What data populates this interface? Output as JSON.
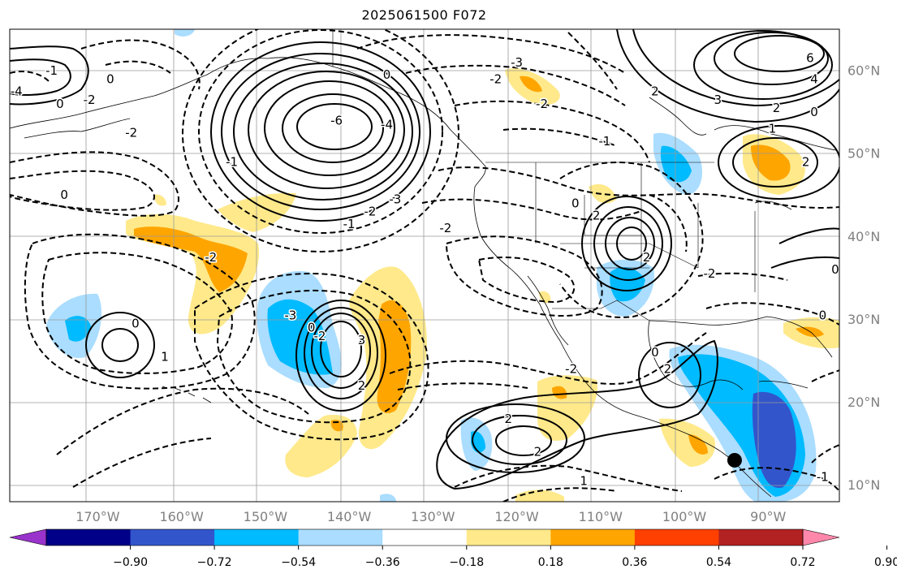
{
  "title": "2025061500 F072",
  "map": {
    "longitude_labels": [
      "170°W",
      "160°W",
      "150°W",
      "140°W",
      "130°W",
      "120°W",
      "110°W",
      "100°W",
      "90°W"
    ],
    "latitude_labels": [
      "60°N",
      "50°N",
      "40°N",
      "30°N",
      "20°N",
      "10°N"
    ],
    "contour_labels": [
      {
        "text": "-1",
        "lon": 175.5,
        "lat": 60.0
      },
      {
        "text": "0",
        "lon": 174.5,
        "lat": 56.0
      },
      {
        "text": "-2",
        "lon": 171.0,
        "lat": 56.5
      },
      {
        "text": "-4",
        "lon": 179.7,
        "lat": 57.5
      },
      {
        "text": "0",
        "lon": 168.5,
        "lat": 59.0
      },
      {
        "text": "-2",
        "lon": 166.0,
        "lat": 52.5
      },
      {
        "text": "0",
        "lon": 174.0,
        "lat": 45.0
      },
      {
        "text": "-1",
        "lon": 154.0,
        "lat": 49.0
      },
      {
        "text": "-6",
        "lon": 141.5,
        "lat": 54.0
      },
      {
        "text": "-4",
        "lon": 135.5,
        "lat": 53.5
      },
      {
        "text": "0",
        "lon": 135.5,
        "lat": 59.5
      },
      {
        "text": "-2",
        "lon": 137.5,
        "lat": 43.0
      },
      {
        "text": "-3",
        "lon": 134.5,
        "lat": 44.5
      },
      {
        "text": "-1",
        "lon": 140.0,
        "lat": 41.5
      },
      {
        "text": "-2",
        "lon": 128.5,
        "lat": 41.0
      },
      {
        "text": "-3",
        "lon": 120.0,
        "lat": 61.0
      },
      {
        "text": "-2",
        "lon": 122.5,
        "lat": 59.0
      },
      {
        "text": "-2",
        "lon": 117.0,
        "lat": 56.0
      },
      {
        "text": "-1",
        "lon": 109.5,
        "lat": 51.5
      },
      {
        "text": "2",
        "lon": 103.5,
        "lat": 57.5
      },
      {
        "text": "3",
        "lon": 96.0,
        "lat": 56.5
      },
      {
        "text": "2",
        "lon": 89.0,
        "lat": 55.5
      },
      {
        "text": "6",
        "lon": 85.0,
        "lat": 61.5
      },
      {
        "text": "4",
        "lon": 84.5,
        "lat": 59.0
      },
      {
        "text": "1",
        "lon": 89.5,
        "lat": 53.0
      },
      {
        "text": "0",
        "lon": 84.5,
        "lat": 55.0
      },
      {
        "text": "2",
        "lon": 85.5,
        "lat": 49.0
      },
      {
        "text": "-2",
        "lon": 156.5,
        "lat": 37.5
      },
      {
        "text": "0",
        "lon": 165.5,
        "lat": 29.5
      },
      {
        "text": "1",
        "lon": 162.0,
        "lat": 25.5
      },
      {
        "text": "-3",
        "lon": 147.0,
        "lat": 30.5
      },
      {
        "text": "0",
        "lon": 144.5,
        "lat": 29.0
      },
      {
        "text": "-2",
        "lon": 143.5,
        "lat": 28.0
      },
      {
        "text": "3",
        "lon": 138.5,
        "lat": 27.5
      },
      {
        "text": "2",
        "lon": 138.5,
        "lat": 22.0
      },
      {
        "text": "0",
        "lon": 113.0,
        "lat": 44.0
      },
      {
        "text": "2",
        "lon": 110.5,
        "lat": 42.5
      },
      {
        "text": "2",
        "lon": 104.5,
        "lat": 37.5
      },
      {
        "text": "-2",
        "lon": 97.0,
        "lat": 35.5
      },
      {
        "text": "0",
        "lon": 82.0,
        "lat": 36.0
      },
      {
        "text": "0",
        "lon": 83.5,
        "lat": 30.5
      },
      {
        "text": "-2",
        "lon": 113.5,
        "lat": 24.0
      },
      {
        "text": "0",
        "lon": 103.5,
        "lat": 26.0
      },
      {
        "text": "2",
        "lon": 102.0,
        "lat": 24.0
      },
      {
        "text": "2",
        "lon": 121.0,
        "lat": 18.0
      },
      {
        "text": "2",
        "lon": 117.5,
        "lat": 14.0
      },
      {
        "text": "1",
        "lon": 112.0,
        "lat": 10.5
      },
      {
        "text": "-1",
        "lon": 83.5,
        "lat": 11.0
      }
    ],
    "marker": {
      "lon": 94.0,
      "lat": 13.0,
      "color": "#000000"
    }
  },
  "colorbar": {
    "tick_labels": [
      "−0.90",
      "−0.72",
      "−0.54",
      "−0.36",
      "−0.18",
      "0.18",
      "0.36",
      "0.54",
      "0.72",
      "0.90"
    ],
    "colors": [
      "#9933cc",
      "#000088",
      "#3355cc",
      "#00bbff",
      "#aaddff",
      "#ffffff",
      "#ffe98a",
      "#ffa500",
      "#ff4000",
      "#b22222",
      "#ff88aa"
    ]
  }
}
